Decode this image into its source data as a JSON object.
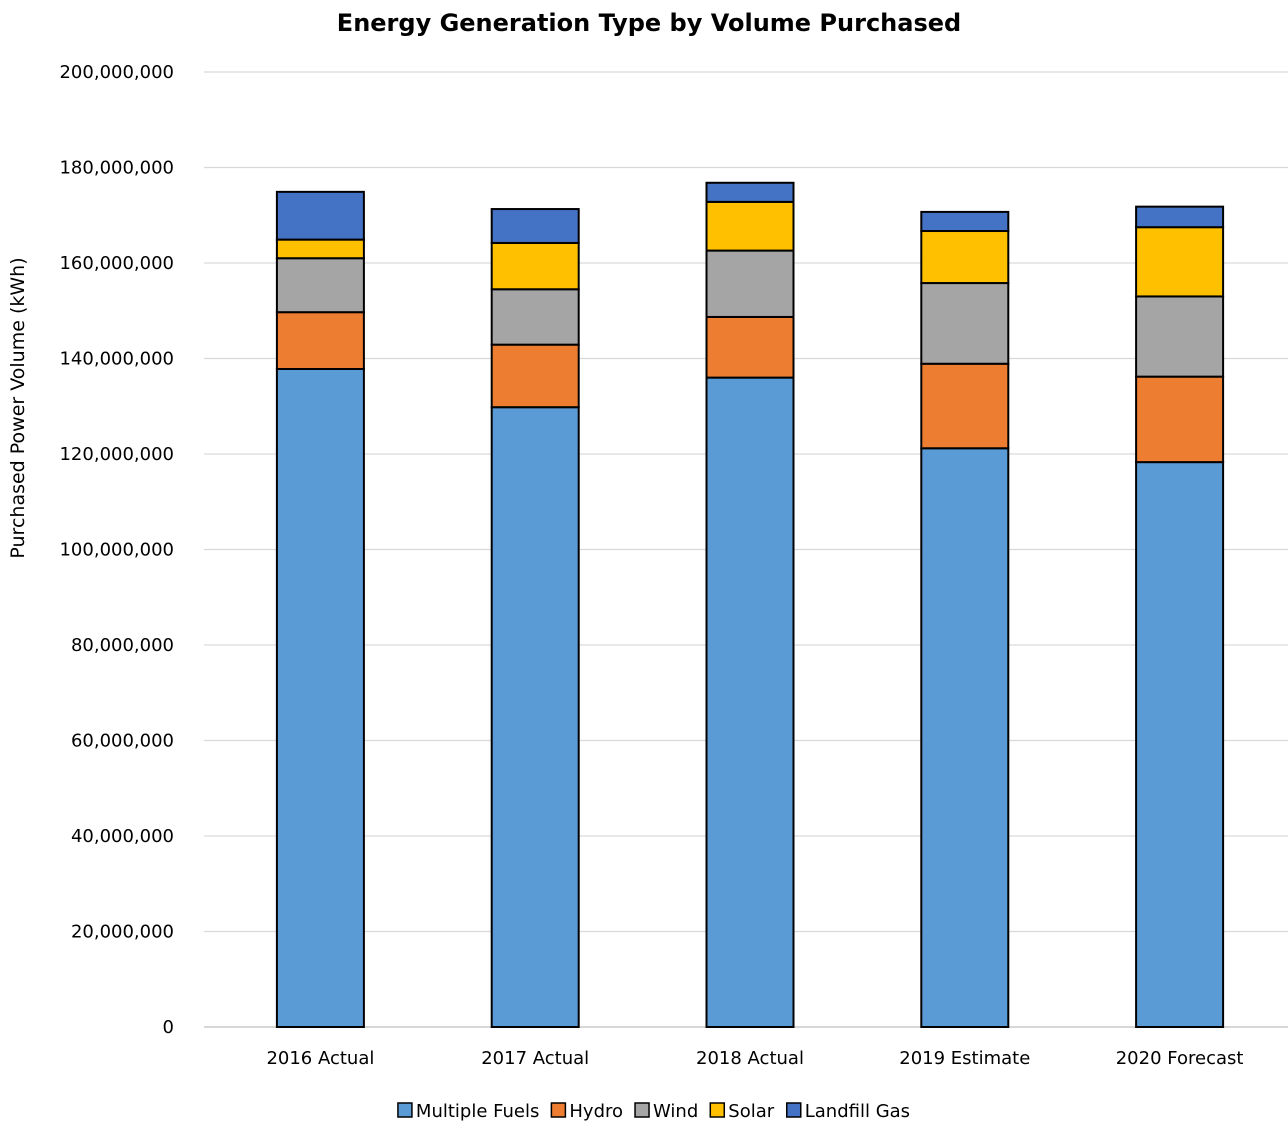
{
  "chart_data": {
    "type": "bar",
    "stacked": true,
    "title": "Energy Generation Type by Volume Purchased",
    "xlabel": "",
    "ylabel": "Purchased Power Volume (kWh)",
    "ylim": [
      0,
      200000000
    ],
    "yticks": [
      0,
      20000000,
      40000000,
      60000000,
      80000000,
      100000000,
      120000000,
      140000000,
      160000000,
      180000000,
      200000000
    ],
    "ytick_labels": [
      "0",
      "20,000,000",
      "40,000,000",
      "60,000,000",
      "80,000,000",
      "100,000,000",
      "120,000,000",
      "140,000,000",
      "160,000,000",
      "180,000,000",
      "200,000,000"
    ],
    "grid": true,
    "legend_position": "bottom",
    "categories": [
      "2016 Actual",
      "2017 Actual",
      "2018 Actual",
      "2019 Estimate",
      "2020 Forecast"
    ],
    "series": [
      {
        "name": "Multiple Fuels",
        "color": "#5B9BD5",
        "values": [
          137800000,
          129800000,
          136000000,
          121200000,
          118300000
        ]
      },
      {
        "name": "Hydro",
        "color": "#ED7D31",
        "values": [
          11900000,
          13100000,
          12700000,
          17700000,
          17900000
        ]
      },
      {
        "name": "Wind",
        "color": "#A5A5A5",
        "values": [
          11300000,
          11600000,
          13900000,
          16900000,
          16800000
        ]
      },
      {
        "name": "Solar",
        "color": "#FFC000",
        "values": [
          3900000,
          9700000,
          10200000,
          10900000,
          14500000
        ]
      },
      {
        "name": "Landfill Gas",
        "color": "#4472C4",
        "values": [
          10000000,
          7100000,
          4000000,
          4000000,
          4300000
        ]
      }
    ]
  }
}
